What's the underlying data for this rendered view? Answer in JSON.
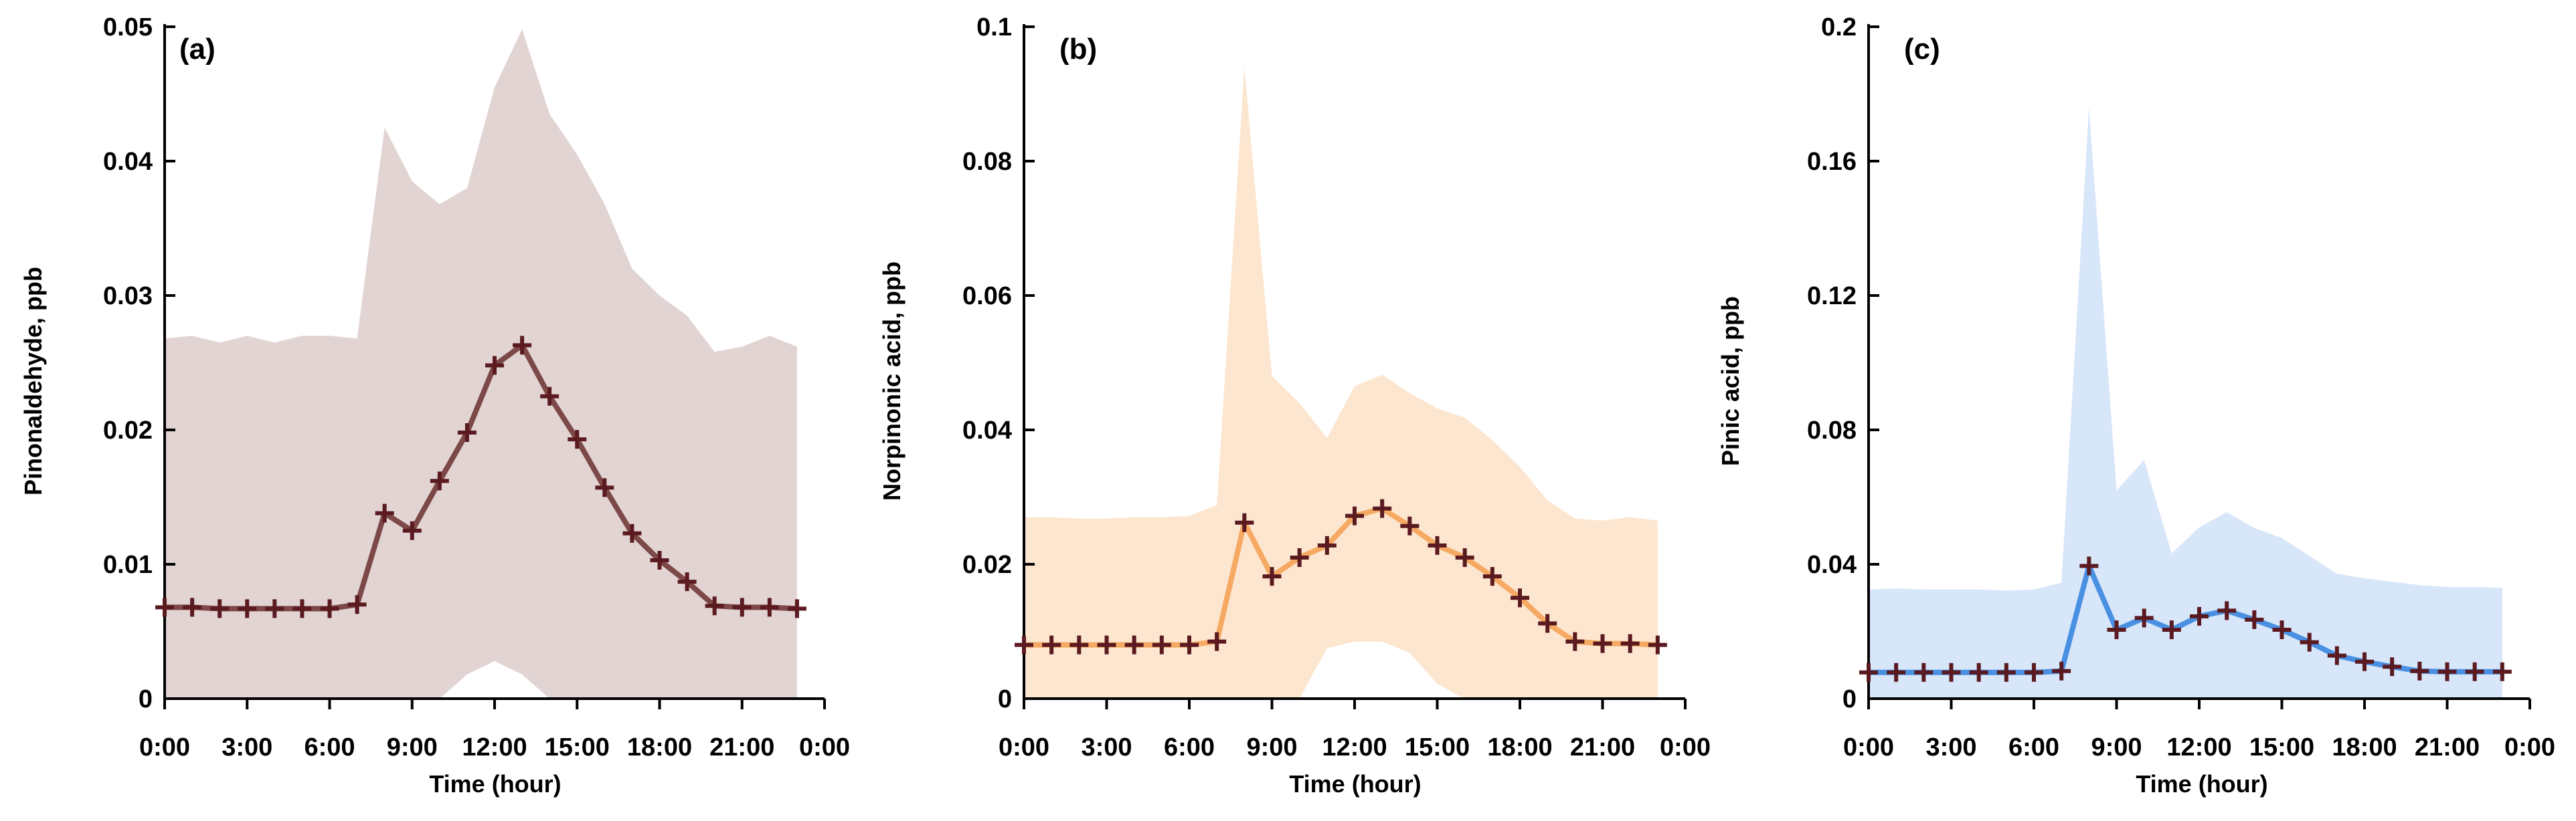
{
  "figure": {
    "xlabel": "Time (hour)"
  },
  "colors": {
    "marker": "#5a1a20",
    "panel_a": {
      "line": "#7d4848",
      "band": "#e2d4d3"
    },
    "panel_b": {
      "line": "#f5a963",
      "band": "#fde6cf"
    },
    "panel_c": {
      "line": "#4a90e2",
      "band": "#d8e6fa"
    }
  },
  "chart_data": [
    {
      "type": "line",
      "panel_label": "(a)",
      "title": "",
      "xlabel": "Time (hour)",
      "ylabel": "Pinonaldehyde, ppb",
      "xlim": [
        0,
        24
      ],
      "ylim": [
        0,
        0.05
      ],
      "x_ticks": [
        0,
        3,
        6,
        9,
        12,
        15,
        18,
        21,
        24
      ],
      "x_tick_labels": [
        "0:00",
        "3:00",
        "6:00",
        "9:00",
        "12:00",
        "15:00",
        "18:00",
        "21:00",
        "0:00"
      ],
      "y_ticks": [
        0,
        0.01,
        0.02,
        0.03,
        0.04,
        0.05
      ],
      "y_tick_labels": [
        "0",
        "0.01",
        "0.02",
        "0.03",
        "0.04",
        "0.05"
      ],
      "x": [
        0,
        1,
        2,
        3,
        4,
        5,
        6,
        7,
        8,
        9,
        10,
        11,
        12,
        13,
        14,
        15,
        16,
        17,
        18,
        19,
        20,
        21,
        22,
        23
      ],
      "series": [
        {
          "values": [
            0.0068,
            0.0068,
            0.0067,
            0.0067,
            0.0067,
            0.0067,
            0.0067,
            0.007,
            0.0138,
            0.0125,
            0.0162,
            0.0198,
            0.0248,
            0.0263,
            0.0225,
            0.0193,
            0.0157,
            0.0123,
            0.0103,
            0.0087,
            0.0069,
            0.0068,
            0.0068,
            0.0067
          ]
        }
      ],
      "band": {
        "upper": [
          0.0268,
          0.027,
          0.0265,
          0.027,
          0.0265,
          0.027,
          0.027,
          0.0268,
          0.0425,
          0.0385,
          0.0368,
          0.038,
          0.0455,
          0.0498,
          0.0435,
          0.0405,
          0.0368,
          0.032,
          0.03,
          0.0285,
          0.0258,
          0.0262,
          0.027,
          0.0262
        ],
        "lower": [
          0,
          0,
          0,
          0,
          0,
          0,
          0,
          0,
          0,
          0,
          0,
          0.0018,
          0.0028,
          0.0018,
          0,
          0,
          0,
          0,
          0,
          0,
          0,
          0,
          0,
          0
        ]
      }
    },
    {
      "type": "line",
      "panel_label": "(b)",
      "title": "",
      "xlabel": "Time (hour)",
      "ylabel": "Norpinonic acid, ppb",
      "xlim": [
        0,
        24
      ],
      "ylim": [
        0,
        0.1
      ],
      "x_ticks": [
        0,
        3,
        6,
        9,
        12,
        15,
        18,
        21,
        24
      ],
      "x_tick_labels": [
        "0:00",
        "3:00",
        "6:00",
        "9:00",
        "12:00",
        "15:00",
        "18:00",
        "21:00",
        "0:00"
      ],
      "y_ticks": [
        0,
        0.02,
        0.04,
        0.06,
        0.08,
        0.1
      ],
      "y_tick_labels": [
        "0",
        "0.02",
        "0.04",
        "0.06",
        "0.08",
        "0.1"
      ],
      "x": [
        0,
        1,
        2,
        3,
        4,
        5,
        6,
        7,
        8,
        9,
        10,
        11,
        12,
        13,
        14,
        15,
        16,
        17,
        18,
        19,
        20,
        21,
        22,
        23
      ],
      "series": [
        {
          "values": [
            0.008,
            0.008,
            0.008,
            0.008,
            0.008,
            0.008,
            0.008,
            0.0085,
            0.0262,
            0.0182,
            0.021,
            0.0228,
            0.0272,
            0.0283,
            0.0257,
            0.0228,
            0.021,
            0.0182,
            0.015,
            0.0112,
            0.0085,
            0.0082,
            0.0082,
            0.008
          ]
        }
      ],
      "band": {
        "upper": [
          0.027,
          0.027,
          0.0268,
          0.0268,
          0.027,
          0.027,
          0.0272,
          0.0288,
          0.094,
          0.048,
          0.044,
          0.0388,
          0.0465,
          0.0482,
          0.0455,
          0.0432,
          0.0418,
          0.0385,
          0.0345,
          0.0295,
          0.0268,
          0.0265,
          0.027,
          0.0265
        ],
        "lower": [
          0,
          0,
          0,
          0,
          0,
          0,
          0,
          0,
          0,
          0,
          0,
          0.0075,
          0.0085,
          0.0085,
          0.0068,
          0.0022,
          0,
          0,
          0,
          0,
          0,
          0,
          0,
          0
        ]
      }
    },
    {
      "type": "line",
      "panel_label": "(c)",
      "title": "",
      "xlabel": "Time (hour)",
      "ylabel": "Pinic acid, ppb",
      "xlim": [
        0,
        24
      ],
      "ylim": [
        0,
        0.2
      ],
      "x_ticks": [
        0,
        3,
        6,
        9,
        12,
        15,
        18,
        21,
        24
      ],
      "x_tick_labels": [
        "0:00",
        "3:00",
        "6:00",
        "9:00",
        "12:00",
        "15:00",
        "18:00",
        "21:00",
        "0:00"
      ],
      "y_ticks": [
        0,
        0.04,
        0.08,
        0.12,
        0.16,
        0.2
      ],
      "y_tick_labels": [
        "0",
        "0.04",
        "0.08",
        "0.12",
        "0.16",
        "0.2"
      ],
      "x": [
        0,
        1,
        2,
        3,
        4,
        5,
        6,
        7,
        8,
        9,
        10,
        11,
        12,
        13,
        14,
        15,
        16,
        17,
        18,
        19,
        20,
        21,
        22,
        23
      ],
      "series": [
        {
          "values": [
            0.0078,
            0.0078,
            0.0078,
            0.0078,
            0.0078,
            0.0078,
            0.0078,
            0.0082,
            0.0395,
            0.0205,
            0.024,
            0.0205,
            0.0245,
            0.0262,
            0.0235,
            0.0205,
            0.0168,
            0.0128,
            0.011,
            0.0095,
            0.0082,
            0.008,
            0.008,
            0.008
          ]
        }
      ],
      "band": {
        "upper": [
          0.0325,
          0.0328,
          0.0325,
          0.0325,
          0.0325,
          0.0322,
          0.0325,
          0.0345,
          0.176,
          0.062,
          0.071,
          0.0432,
          0.051,
          0.0555,
          0.0508,
          0.0478,
          0.0425,
          0.0372,
          0.0358,
          0.0348,
          0.0338,
          0.0332,
          0.0332,
          0.033
        ],
        "lower": [
          0,
          0,
          0,
          0,
          0,
          0,
          0,
          0,
          0,
          0,
          0,
          0,
          0,
          0,
          0,
          0,
          0,
          0,
          0,
          0,
          0,
          0,
          0,
          0
        ]
      }
    }
  ]
}
